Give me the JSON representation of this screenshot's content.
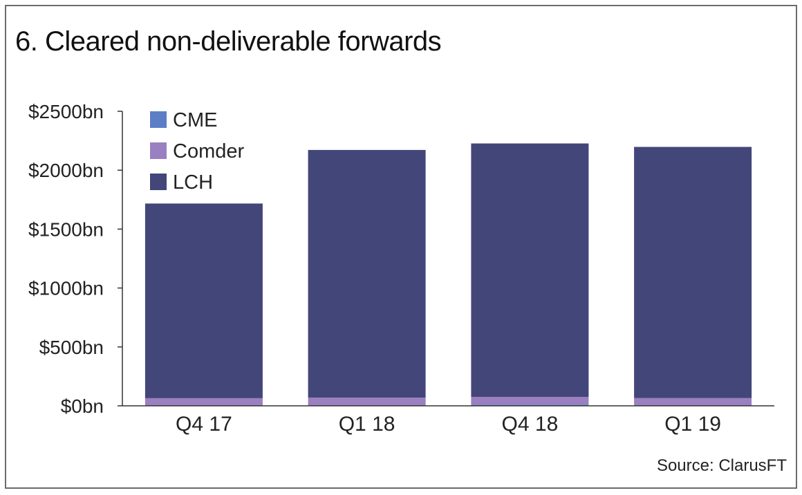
{
  "title": "6. Cleared non-deliverable forwards",
  "source": "Source: ClarusFT",
  "chart_data": {
    "type": "bar",
    "stacked": true,
    "categories": [
      "Q4 17",
      "Q1 18",
      "Q4 18",
      "Q1 19"
    ],
    "series": [
      {
        "name": "CME",
        "color": "#5b7ec7",
        "values": [
          3,
          3,
          10,
          3
        ]
      },
      {
        "name": "Comder",
        "color": "#9a7fc1",
        "values": [
          62,
          67,
          65,
          63
        ]
      },
      {
        "name": "LCH",
        "color": "#424678",
        "values": [
          1652,
          2102,
          2152,
          2132
        ]
      }
    ],
    "ylim": [
      0,
      2500
    ],
    "yticks": [
      0,
      500,
      1000,
      1500,
      2000,
      2500
    ],
    "ytick_labels": [
      "$0bn",
      "$500bn",
      "$1000bn",
      "$1500bn",
      "$2000bn",
      "$2500bn"
    ],
    "legend_position": "top-left",
    "grid": false
  }
}
